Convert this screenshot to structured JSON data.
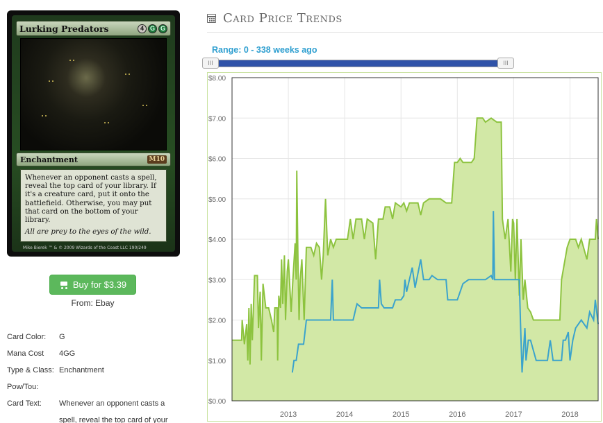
{
  "card": {
    "name": "Lurking Predators",
    "mana": [
      "4",
      "G",
      "G"
    ],
    "type_line": "Enchantment",
    "set_symbol": "M10",
    "rules_text": "Whenever an opponent casts a spell, reveal the top card of your library. If it's a creature card, put it onto the battlefield. Otherwise, you may put that card on the bottom of your library.",
    "flavor_text": "All are prey to the eyes of the wild.",
    "footer": "Mike Bierek  ™ & © 2009 Wizards of the Coast LLC 190/249"
  },
  "buy": {
    "label": "Buy for $3.39",
    "from": "From: Ebay"
  },
  "details": [
    {
      "label": "Card Color:",
      "value": "G"
    },
    {
      "label": "Mana Cost",
      "value": "4GG"
    },
    {
      "label": "Type & Class:",
      "value": "Enchantment"
    },
    {
      "label": "Pow/Tou:",
      "value": ""
    },
    {
      "label": "Card Text:",
      "value": "Whenever an opponent casts a"
    },
    {
      "label": "",
      "value": "spell, reveal the top card of your"
    }
  ],
  "header": {
    "title": "Card Price Trends"
  },
  "range": {
    "label": "Range: 0 - 338 weeks ago",
    "handle_glyph": "III",
    "min_weeks": 0,
    "max_weeks": 338
  },
  "colors": {
    "green_line": "#8dc33f",
    "green_fill": "#d2e8a6",
    "blue_line": "#3ba3cc",
    "frame": "#c9e2a0"
  },
  "chart_data": {
    "type": "area",
    "title": "",
    "xlabel": "",
    "ylabel": "",
    "xlim": [
      2012.0,
      2018.5
    ],
    "ylim": [
      0,
      8
    ],
    "yticks": [
      "$0.00",
      "$1.00",
      "$2.00",
      "$3.00",
      "$4.00",
      "$5.00",
      "$6.00",
      "$7.00",
      "$8.00"
    ],
    "xticks": [
      "2013",
      "2014",
      "2015",
      "2016",
      "2017",
      "2018"
    ],
    "grid": true,
    "series": [
      {
        "key": "green",
        "points": [
          [
            2012.0,
            1.5
          ],
          [
            2012.17,
            1.5
          ],
          [
            2012.18,
            2.0
          ],
          [
            2012.22,
            1.4
          ],
          [
            2012.26,
            1.9
          ],
          [
            2012.28,
            1.0
          ],
          [
            2012.3,
            2.3
          ],
          [
            2012.32,
            0.9
          ],
          [
            2012.34,
            2.4
          ],
          [
            2012.36,
            1.5
          ],
          [
            2012.4,
            3.1
          ],
          [
            2012.45,
            3.1
          ],
          [
            2012.47,
            1.8
          ],
          [
            2012.5,
            2.7
          ],
          [
            2012.52,
            1.0
          ],
          [
            2012.55,
            2.9
          ],
          [
            2012.6,
            2.3
          ],
          [
            2012.65,
            2.3
          ],
          [
            2012.7,
            2.0
          ],
          [
            2012.74,
            1.7
          ],
          [
            2012.76,
            2.3
          ],
          [
            2012.8,
            2.3
          ],
          [
            2012.81,
            1.0
          ],
          [
            2012.83,
            2.6
          ],
          [
            2012.86,
            2.3
          ],
          [
            2012.88,
            3.5
          ],
          [
            2012.9,
            2.4
          ],
          [
            2012.93,
            3.6
          ],
          [
            2012.95,
            2.0
          ],
          [
            2012.98,
            3.2
          ],
          [
            2013.0,
            3.5
          ],
          [
            2013.05,
            2.2
          ],
          [
            2013.08,
            3.0
          ],
          [
            2013.12,
            3.9
          ],
          [
            2013.14,
            3.0
          ],
          [
            2013.15,
            5.7
          ],
          [
            2013.17,
            3.5
          ],
          [
            2013.19,
            2.0
          ],
          [
            2013.21,
            3.0
          ],
          [
            2013.24,
            3.5
          ],
          [
            2013.28,
            2.0
          ],
          [
            2013.32,
            3.8
          ],
          [
            2013.4,
            3.8
          ],
          [
            2013.45,
            3.6
          ],
          [
            2013.5,
            3.9
          ],
          [
            2013.55,
            3.8
          ],
          [
            2013.59,
            3.0
          ],
          [
            2013.62,
            3.6
          ],
          [
            2013.66,
            5.0
          ],
          [
            2013.7,
            3.6
          ],
          [
            2013.75,
            4.0
          ],
          [
            2013.8,
            3.8
          ],
          [
            2013.85,
            4.0
          ],
          [
            2013.95,
            4.0
          ],
          [
            2014.05,
            4.0
          ],
          [
            2014.1,
            4.5
          ],
          [
            2014.15,
            4.0
          ],
          [
            2014.2,
            4.5
          ],
          [
            2014.3,
            4.5
          ],
          [
            2014.35,
            4.0
          ],
          [
            2014.4,
            4.5
          ],
          [
            2014.5,
            4.4
          ],
          [
            2014.55,
            3.5
          ],
          [
            2014.6,
            4.5
          ],
          [
            2014.68,
            4.5
          ],
          [
            2014.72,
            4.8
          ],
          [
            2014.8,
            4.8
          ],
          [
            2014.85,
            4.5
          ],
          [
            2014.9,
            4.9
          ],
          [
            2015.0,
            4.8
          ],
          [
            2015.05,
            4.9
          ],
          [
            2015.1,
            4.7
          ],
          [
            2015.15,
            4.9
          ],
          [
            2015.3,
            4.9
          ],
          [
            2015.35,
            4.6
          ],
          [
            2015.4,
            4.9
          ],
          [
            2015.5,
            5.0
          ],
          [
            2015.7,
            5.0
          ],
          [
            2015.8,
            4.9
          ],
          [
            2015.9,
            4.9
          ],
          [
            2015.95,
            5.9
          ],
          [
            2016.0,
            5.9
          ],
          [
            2016.05,
            6.0
          ],
          [
            2016.1,
            5.9
          ],
          [
            2016.25,
            5.9
          ],
          [
            2016.3,
            6.0
          ],
          [
            2016.35,
            7.0
          ],
          [
            2016.45,
            7.0
          ],
          [
            2016.5,
            6.9
          ],
          [
            2016.6,
            7.0
          ],
          [
            2016.7,
            6.9
          ],
          [
            2016.78,
            6.9
          ],
          [
            2016.8,
            4.5
          ],
          [
            2016.85,
            4.0
          ],
          [
            2016.9,
            4.5
          ],
          [
            2016.95,
            3.2
          ],
          [
            2016.98,
            4.5
          ],
          [
            2017.0,
            4.4
          ],
          [
            2017.03,
            3.0
          ],
          [
            2017.06,
            4.5
          ],
          [
            2017.1,
            2.6
          ],
          [
            2017.13,
            4.0
          ],
          [
            2017.17,
            2.5
          ],
          [
            2017.2,
            3.0
          ],
          [
            2017.25,
            2.3
          ],
          [
            2017.3,
            2.2
          ],
          [
            2017.35,
            2.0
          ],
          [
            2017.5,
            2.0
          ],
          [
            2017.6,
            2.0
          ],
          [
            2017.7,
            2.0
          ],
          [
            2017.82,
            2.0
          ],
          [
            2017.85,
            3.0
          ],
          [
            2017.95,
            3.8
          ],
          [
            2018.0,
            4.0
          ],
          [
            2018.1,
            4.0
          ],
          [
            2018.15,
            3.8
          ],
          [
            2018.2,
            4.0
          ],
          [
            2018.3,
            3.5
          ],
          [
            2018.35,
            4.0
          ],
          [
            2018.45,
            4.0
          ],
          [
            2018.47,
            4.5
          ],
          [
            2018.5,
            4.0
          ]
        ]
      },
      {
        "key": "blue",
        "points": [
          [
            2013.07,
            0.7
          ],
          [
            2013.1,
            1.0
          ],
          [
            2013.14,
            1.0
          ],
          [
            2013.18,
            1.4
          ],
          [
            2013.22,
            1.4
          ],
          [
            2013.27,
            1.4
          ],
          [
            2013.32,
            2.0
          ],
          [
            2013.5,
            2.0
          ],
          [
            2013.7,
            2.0
          ],
          [
            2013.75,
            2.0
          ],
          [
            2013.78,
            3.0
          ],
          [
            2013.8,
            2.0
          ],
          [
            2014.0,
            2.0
          ],
          [
            2014.15,
            2.0
          ],
          [
            2014.2,
            2.3
          ],
          [
            2014.22,
            2.4
          ],
          [
            2014.3,
            2.3
          ],
          [
            2014.5,
            2.3
          ],
          [
            2014.6,
            2.3
          ],
          [
            2014.62,
            3.0
          ],
          [
            2014.65,
            2.4
          ],
          [
            2014.7,
            2.3
          ],
          [
            2014.85,
            2.3
          ],
          [
            2014.9,
            2.5
          ],
          [
            2015.0,
            2.5
          ],
          [
            2015.05,
            2.6
          ],
          [
            2015.07,
            3.0
          ],
          [
            2015.1,
            2.7
          ],
          [
            2015.2,
            3.3
          ],
          [
            2015.25,
            2.8
          ],
          [
            2015.35,
            3.5
          ],
          [
            2015.4,
            3.0
          ],
          [
            2015.5,
            3.0
          ],
          [
            2015.55,
            3.1
          ],
          [
            2015.65,
            3.0
          ],
          [
            2015.8,
            3.0
          ],
          [
            2015.83,
            2.5
          ],
          [
            2016.0,
            2.5
          ],
          [
            2016.1,
            2.9
          ],
          [
            2016.2,
            3.0
          ],
          [
            2016.5,
            3.0
          ],
          [
            2016.6,
            3.1
          ],
          [
            2016.63,
            3.0
          ],
          [
            2016.64,
            4.7
          ],
          [
            2016.66,
            3.0
          ],
          [
            2016.78,
            3.0
          ],
          [
            2017.0,
            3.0
          ],
          [
            2017.1,
            3.0
          ],
          [
            2017.12,
            2.0
          ],
          [
            2017.15,
            0.7
          ],
          [
            2017.2,
            1.8
          ],
          [
            2017.22,
            1.0
          ],
          [
            2017.26,
            1.5
          ],
          [
            2017.3,
            1.5
          ],
          [
            2017.4,
            1.0
          ],
          [
            2017.6,
            1.0
          ],
          [
            2017.65,
            1.5
          ],
          [
            2017.7,
            1.0
          ],
          [
            2017.85,
            1.0
          ],
          [
            2017.88,
            1.5
          ],
          [
            2017.92,
            1.5
          ],
          [
            2017.97,
            1.7
          ],
          [
            2018.0,
            1.0
          ],
          [
            2018.05,
            1.5
          ],
          [
            2018.1,
            1.8
          ],
          [
            2018.2,
            2.0
          ],
          [
            2018.3,
            1.8
          ],
          [
            2018.35,
            2.2
          ],
          [
            2018.42,
            2.0
          ],
          [
            2018.45,
            2.5
          ],
          [
            2018.5,
            1.9
          ]
        ]
      }
    ]
  }
}
